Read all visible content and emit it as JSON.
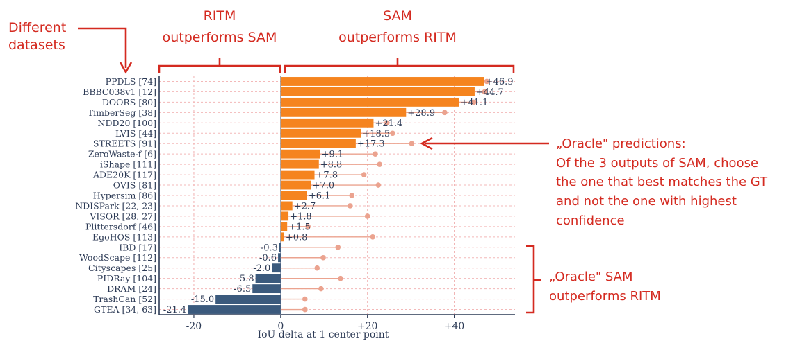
{
  "chart_data": {
    "type": "bar",
    "orientation": "horizontal",
    "xlabel": "IoU delta at 1 center point",
    "xlim": [
      -28,
      54
    ],
    "xticks": [
      {
        "value": -20,
        "label": "-20"
      },
      {
        "value": 0,
        "label": "0"
      },
      {
        "value": 20,
        "label": "+20"
      },
      {
        "value": 40,
        "label": "+40"
      }
    ],
    "grid": true,
    "colors": {
      "positive": "#f5841f",
      "negative": "#3b5a7d",
      "oracle": "#eba38f",
      "annotation": "#d42a20"
    },
    "categories": [
      "PPDLS [74]",
      "BBBC038v1 [12]",
      "DOORS [80]",
      "TimberSeg [38]",
      "NDD20 [100]",
      "LVIS [44]",
      "STREETS [91]",
      "ZeroWaste-f [6]",
      "iShape [111]",
      "ADE20K [117]",
      "OVIS [81]",
      "Hypersim [86]",
      "NDISPark [22, 23]",
      "VISOR [28, 27]",
      "Plittersdorf [46]",
      "EgoHOS [113]",
      "IBD [17]",
      "WoodScape [112]",
      "Cityscapes [25]",
      "PIDRay [104]",
      "DRAM [24]",
      "TrashCan [52]",
      "GTEA [34, 63]"
    ],
    "values": [
      46.9,
      44.7,
      41.1,
      28.9,
      21.4,
      18.5,
      17.3,
      9.1,
      8.8,
      7.8,
      7.0,
      6.1,
      2.7,
      1.8,
      1.5,
      0.8,
      -0.3,
      -0.6,
      -2.0,
      -5.8,
      -6.5,
      -15.0,
      -21.4
    ],
    "value_labels": [
      "+46.9",
      "+44.7",
      "+41.1",
      "+28.9",
      "+21.4",
      "+18.5",
      "+17.3",
      "+9.1",
      "+8.8",
      "+7.8",
      "+7.0",
      "+6.1",
      "+2.7",
      "+1.8",
      "+1.5",
      "+0.8",
      "-0.3",
      "-0.6",
      "-2.0",
      "-5.8",
      "-6.5",
      "-15.0",
      "-21.4"
    ],
    "oracle_values": [
      47.5,
      47.0,
      44.5,
      37.8,
      24.5,
      25.8,
      30.2,
      21.8,
      22.8,
      19.2,
      22.5,
      16.4,
      16.0,
      20.0,
      6.3,
      21.2,
      13.2,
      9.8,
      8.4,
      13.8,
      9.3,
      5.6,
      5.6
    ]
  },
  "annotations": {
    "datasets": [
      "Different",
      "datasets"
    ],
    "ritm_wins": [
      "RITM",
      "outperforms SAM"
    ],
    "sam_wins": [
      "SAM",
      "outperforms RITM"
    ],
    "oracle_note": [
      "„Oracle\" predictions:",
      "Of the 3 outputs of SAM, choose",
      "the one that best matches the GT",
      "and not the one with highest",
      "confidence"
    ],
    "oracle_sam_wins": [
      "„Oracle\" SAM",
      "outperforms RITM"
    ]
  }
}
